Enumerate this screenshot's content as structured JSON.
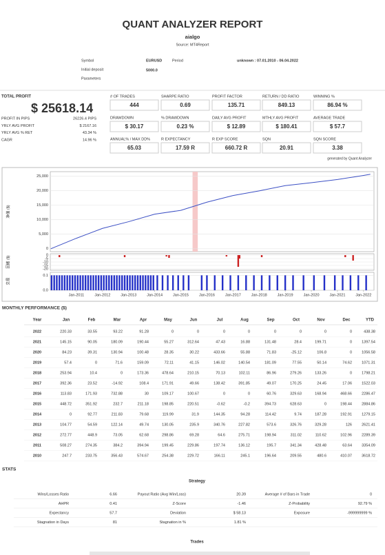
{
  "header": {
    "title": "QUANT ANALYZER REPORT",
    "strategy": "aialgo",
    "source": "Source: MT4Report"
  },
  "info": {
    "symbol_label": "Symbol",
    "symbol": "EURUSD",
    "period_label": "Period",
    "period": "unknown : 07.01.2010 - 06.04.2022",
    "deposit_label": "Initial deposit",
    "deposit": "5000.0",
    "parameters_label": "Parameters"
  },
  "total_profit": {
    "label": "TOTAL PROFIT",
    "value": "$ 25618.14",
    "rows": [
      [
        "PROFIT IN PIPS",
        "26226.4 PIPS"
      ],
      [
        "YRLY AVG PROFIT",
        "$ 2167.16"
      ],
      [
        "YRLY AVG % RET",
        "43.34 %"
      ],
      [
        "CAGR",
        "14.96 %"
      ]
    ]
  },
  "metrics": [
    [
      {
        "label": "# OF TRADES",
        "value": "444"
      },
      {
        "label": "SHARPE RATIO",
        "value": "0.69"
      },
      {
        "label": "PROFIT FACTOR",
        "value": "135.71"
      },
      {
        "label": "RETURN / DD RATIO",
        "value": "849.13"
      },
      {
        "label": "WINNING %",
        "value": "86.94 %"
      }
    ],
    [
      {
        "label": "DRAWDOWN",
        "value": "$ 30.17"
      },
      {
        "label": "% DRAWDOWN",
        "value": "0.23 %"
      },
      {
        "label": "DAILY AVG PROFIT",
        "value": "$ 12.89"
      },
      {
        "label": "MTHLY AVG PROFIT",
        "value": "$ 180.41"
      },
      {
        "label": "AVERAGE TRADE",
        "value": "$ 57.7"
      }
    ],
    [
      {
        "label": "ANNUAL% / MAX DD%",
        "value": "65.03"
      },
      {
        "label": "R EXPECTANCY",
        "value": "17.59 R"
      },
      {
        "label": "R EXP SCORE",
        "value": "660.72 R"
      },
      {
        "label": "SQN",
        "value": "20.91"
      },
      {
        "label": "SQN SCORE",
        "value": "3.38"
      }
    ]
  ],
  "generated": "generated by Quant Analyzer",
  "chart_data": [
    {
      "type": "line",
      "y_label": "净值 ($)",
      "color": "#3b4fc4",
      "x": [
        2010.02,
        2011,
        2012,
        2013,
        2014,
        2015,
        2016,
        2017,
        2018,
        2019,
        2020,
        2021,
        2022,
        2022.26
      ],
      "values": [
        0,
        3600,
        7000,
        9300,
        11900,
        13200,
        16000,
        18300,
        19900,
        21700,
        22700,
        23800,
        25200,
        25600
      ],
      "xlim": [
        2010,
        2022.4
      ],
      "ylim": [
        -1000,
        26500
      ],
      "yticks": [
        0,
        {
          "value": 5000,
          "label": "5,000"
        },
        {
          "value": 10000,
          "label": "10,000"
        },
        {
          "value": 15000,
          "label": "15,000"
        },
        {
          "value": 20000,
          "label": "20,000"
        },
        {
          "value": 25000,
          "label": "25,000"
        }
      ],
      "grid": true,
      "highlight": [
        2015.45,
        2015.65
      ],
      "highlight_color": "#f6c9c9"
    },
    {
      "type": "bar",
      "y_label": "回撤 ($)",
      "color": "#cc2222",
      "x": [
        2010.35,
        2012.85,
        2014.45,
        2014.55,
        2016.75,
        2017.2,
        2017.25,
        2018.1,
        2021.3,
        2021.6
      ],
      "values": [
        -3,
        -3,
        -2,
        -4,
        -2,
        -17,
        -5,
        -3,
        -3,
        -8
      ],
      "xlim": [
        2010,
        2022.4
      ],
      "ylim": [
        -22,
        2
      ],
      "yticks": [
        0,
        -5,
        -10,
        -15,
        -20
      ],
      "grid": true
    },
    {
      "type": "bar",
      "y_label": "交易",
      "color": "#2430c8",
      "x": [
        2010.05,
        2010.15,
        2010.25,
        2010.35,
        2010.45,
        2010.55,
        2010.65,
        2010.75,
        2010.85,
        2010.95,
        2011.05,
        2011.15,
        2011.25,
        2011.35,
        2011.45,
        2011.55,
        2011.65,
        2011.75,
        2011.85,
        2011.95,
        2012.05,
        2012.15,
        2012.25,
        2012.35,
        2012.45,
        2012.55,
        2012.65,
        2012.75,
        2012.85,
        2012.95,
        2013.05,
        2013.15,
        2013.25,
        2013.35,
        2013.45,
        2013.55,
        2013.65,
        2013.75,
        2013.85,
        2013.95,
        2014.1,
        2014.3,
        2014.5,
        2014.7,
        2014.9,
        2015.1,
        2015.3,
        2015.8,
        2016.0,
        2016.3,
        2016.6,
        2016.9,
        2017.2,
        2017.5,
        2017.8,
        2018.1,
        2018.4,
        2018.7,
        2019.0,
        2019.3,
        2019.7,
        2020.1,
        2020.5,
        2020.9,
        2021.2,
        2021.5,
        2021.8,
        2022.1
      ],
      "values": [
        0.1,
        0.1,
        0.1,
        0.1,
        0.1,
        0.1,
        0.1,
        0.1,
        0.1,
        0.1,
        0.1,
        0.1,
        0.1,
        0.1,
        0.1,
        0.1,
        0.1,
        0.1,
        0.1,
        0.1,
        0.1,
        0.1,
        0.1,
        0.1,
        0.1,
        0.1,
        0.1,
        0.1,
        0.1,
        0.1,
        0.1,
        0.1,
        0.1,
        0.1,
        0.1,
        0.1,
        0.1,
        0.1,
        0.1,
        0.1,
        0.1,
        0.1,
        0.1,
        0.1,
        0.1,
        0.1,
        0.1,
        0.1,
        0.1,
        0.1,
        0.1,
        0.1,
        0.1,
        0.1,
        0.1,
        0.1,
        0.1,
        0.1,
        0.1,
        0.1,
        0.1,
        0.1,
        0.1,
        0.1,
        0.1,
        0.1,
        0.1,
        0.1
      ],
      "xlim": [
        2010,
        2022.4
      ],
      "ylim": [
        0,
        0.12
      ],
      "yticks": [
        {
          "value": 0,
          "label": "0.0"
        },
        0.1
      ],
      "grid": true,
      "xticks": [
        {
          "value": 2011,
          "label": "Jan-2011"
        },
        {
          "value": 2012,
          "label": "Jan-2012"
        },
        {
          "value": 2013,
          "label": "Jan-2013"
        },
        {
          "value": 2014,
          "label": "Jan-2014"
        },
        {
          "value": 2015,
          "label": "Jan-2015"
        },
        {
          "value": 2016,
          "label": "Jan-2016"
        },
        {
          "value": 2017,
          "label": "Jan-2017"
        },
        {
          "value": 2018,
          "label": "Jan-2018"
        },
        {
          "value": 2019,
          "label": "Jan-2019"
        },
        {
          "value": 2020,
          "label": "Jan-2020"
        },
        {
          "value": 2021,
          "label": "Jan-2021"
        },
        {
          "value": 2022,
          "label": "Jan-2022"
        }
      ]
    }
  ],
  "monthly": {
    "title": "MONTHLY PERFORMANCE ($)",
    "header": [
      "Year",
      "Jan",
      "Feb",
      "Mar",
      "Apr",
      "May",
      "Jun",
      "Jul",
      "Aug",
      "Sep",
      "Oct",
      "Nov",
      "Dec",
      "YTD"
    ],
    "rows": [
      [
        2022,
        220.33,
        33.55,
        93.22,
        91.28,
        0,
        0,
        0,
        0,
        0,
        0,
        0,
        0,
        438.38
      ],
      [
        2021,
        145.15,
        90.05,
        180.09,
        190.44,
        55.27,
        312.64,
        47.43,
        16.88,
        131.48,
        28.4,
        199.71,
        0,
        1397.54
      ],
      [
        2020,
        84.23,
        39.31,
        130.94,
        100.48,
        28.35,
        30.22,
        433.66,
        55.88,
        71.83,
        -25.12,
        106.8,
        0,
        1056.58
      ],
      [
        2019,
        57.4,
        0,
        71.6,
        159.09,
        72.11,
        41.15,
        146.02,
        140.54,
        181.09,
        77.55,
        50.14,
        74.62,
        1071.31
      ],
      [
        2018,
        253.94,
        10.4,
        0,
        173.36,
        478.64,
        210.15,
        70.13,
        102.11,
        86.96,
        279.26,
        133.26,
        0,
        1798.21
      ],
      [
        2017,
        392.36,
        23.52,
        -14.92,
        108.4,
        171.91,
        49.66,
        138.42,
        391.85,
        49.07,
        170.25,
        24.45,
        17.06,
        1522.03
      ],
      [
        2016,
        113.83,
        171.93,
        732.88,
        30,
        109.17,
        100.67,
        0,
        0,
        60.76,
        329.63,
        168.94,
        468.66,
        2286.47
      ],
      [
        2015,
        448.72,
        351.92,
        232.7,
        211.18,
        198.85,
        220.51,
        -0.62,
        -0.2,
        394.73,
        628.63,
        0,
        198.44,
        2884.86
      ],
      [
        2014,
        0,
        92.77,
        211.83,
        79.68,
        119.99,
        31.9,
        144.35,
        94.28,
        114.42,
        9.74,
        187.28,
        192.91,
        1279.15
      ],
      [
        2013,
        104.77,
        54.59,
        122.14,
        49.74,
        130.05,
        235.9,
        340.76,
        227.82,
        573.6,
        326.76,
        329.28,
        126,
        2621.41
      ],
      [
        2012,
        272.77,
        448.9,
        73.05,
        62.68,
        298.86,
        69.28,
        64.6,
        275.71,
        198.94,
        311.02,
        110.62,
        102.96,
        2289.39
      ],
      [
        2011,
        508.27,
        274.35,
        384.2,
        394.94,
        199.45,
        229.86,
        197.74,
        136.12,
        195.7,
        341.34,
        428.48,
        63.64,
        3354.09
      ],
      [
        2010,
        247.7,
        233.75,
        356.43,
        574.67,
        254.38,
        229.72,
        166.11,
        245.1,
        196.64,
        209.55,
        480.6,
        410.07,
        3618.72
      ]
    ]
  },
  "stats": {
    "title": "STATS",
    "subtitle": "Strategy",
    "rows": [
      [
        "Wins/Losses Ratio",
        "6.66",
        "Payout Ratio (Avg Win/Loss)",
        "20.39",
        "Average # of Bars in Trade",
        "0"
      ],
      [
        "AHPR",
        "0.41",
        "Z-Score",
        "-1.46",
        "Z-Probability",
        "92.79 %"
      ],
      [
        "Expectancy",
        "57.7",
        "Deviation",
        "$ 58.13",
        "Exposure",
        "-999999999 %"
      ],
      [
        "Stagnation in Days",
        "81",
        "Stagnation in %",
        "1.81 %"
      ]
    ],
    "trades_title": "Trades"
  }
}
